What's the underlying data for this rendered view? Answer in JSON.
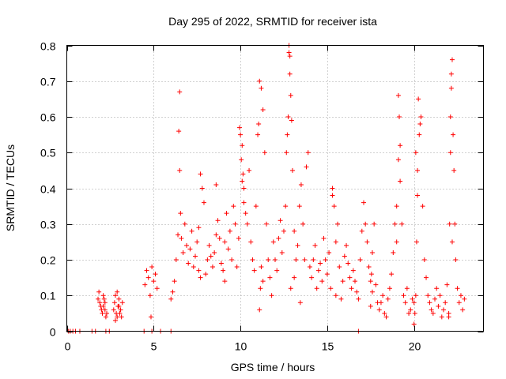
{
  "chart_data": {
    "type": "scatter",
    "title": "Day 295 of 2022, SRMTID for receiver ista",
    "xlabel": "GPS time / hours",
    "ylabel": "SRMTID / TECUs",
    "xlim": [
      0,
      24
    ],
    "ylim": [
      0,
      0.8
    ],
    "xticks": [
      0,
      5,
      10,
      15,
      20
    ],
    "xtick_labels": [
      "0",
      "5",
      "10",
      "15",
      "20"
    ],
    "yticks": [
      0,
      0.1,
      0.2,
      0.3,
      0.4,
      0.5,
      0.6,
      0.7,
      0.8
    ],
    "ytick_labels": [
      "0",
      "0.1",
      "0.2",
      "0.3",
      "0.4",
      "0.5",
      "0.6",
      "0.7",
      "0.8"
    ],
    "grid": true,
    "legend": "none",
    "series_color": "#ff0000",
    "marker": "plus",
    "series": [
      {
        "name": "SRMTID",
        "x": [
          0.1,
          0.2,
          0.35,
          0.5,
          0.75,
          1.45,
          1.65,
          2.25,
          2.45,
          4.45,
          4.9,
          5.4,
          6.0,
          16.8,
          1.8,
          1.85,
          1.9,
          1.95,
          2.0,
          2.05,
          2.1,
          2.15,
          2.2,
          2.25,
          2.3,
          2.2,
          2.1,
          2.7,
          2.75,
          2.8,
          2.85,
          2.9,
          2.95,
          3.0,
          3.05,
          3.1,
          3.15,
          3.2,
          2.8,
          2.9,
          3.0,
          4.5,
          4.6,
          4.7,
          4.8,
          4.85,
          5.0,
          5.1,
          5.2,
          4.9,
          6.0,
          6.1,
          6.2,
          6.3,
          6.4,
          6.5,
          6.45,
          6.5,
          6.55,
          6.6,
          6.7,
          6.8,
          6.9,
          7.0,
          7.1,
          7.2,
          7.3,
          7.4,
          7.5,
          7.6,
          7.7,
          7.8,
          7.9,
          7.6,
          7.7,
          8.0,
          8.1,
          8.2,
          8.3,
          8.4,
          8.5,
          8.6,
          8.7,
          8.8,
          8.9,
          9.0,
          9.1,
          9.2,
          9.3,
          9.4,
          9.5,
          9.6,
          9.7,
          9.8,
          9.9,
          9.1,
          8.6,
          9.95,
          10.0,
          10.05,
          10.1,
          10.15,
          10.2,
          10.3,
          10.4,
          10.5,
          10.6,
          10.7,
          10.8,
          10.9,
          11.0,
          11.1,
          11.2,
          11.3,
          11.4,
          11.5,
          11.6,
          11.7,
          11.8,
          11.9,
          10.1,
          10.2,
          11.05,
          11.1,
          11.15,
          11.2,
          11.3,
          12.0,
          12.1,
          12.2,
          12.3,
          12.4,
          12.5,
          12.6,
          12.65,
          12.7,
          12.75,
          12.8,
          12.85,
          12.9,
          12.95,
          13.0,
          13.1,
          13.2,
          13.3,
          13.4,
          13.5,
          13.6,
          13.7,
          13.8,
          13.9,
          12.8,
          12.85,
          12.9,
          13.45,
          13.1,
          14.0,
          14.1,
          14.2,
          14.3,
          14.4,
          14.5,
          14.6,
          14.7,
          14.8,
          14.9,
          15.0,
          15.1,
          15.2,
          15.3,
          15.4,
          15.5,
          15.6,
          15.7,
          15.8,
          15.9,
          16.0,
          16.1,
          16.2,
          16.3,
          16.4,
          15.3,
          15.5,
          16.5,
          16.6,
          16.7,
          16.8,
          16.9,
          17.0,
          17.1,
          17.2,
          17.3,
          17.4,
          17.5,
          17.6,
          17.7,
          17.8,
          17.9,
          17.5,
          17.55,
          17.6,
          18.0,
          18.1,
          18.2,
          18.3,
          18.4,
          18.5,
          18.6,
          18.7,
          18.8,
          18.9,
          19.0,
          19.1,
          19.2,
          19.3,
          19.4,
          19.5,
          19.6,
          19.7,
          19.8,
          19.9,
          19.1,
          19.15,
          19.2,
          19.0,
          20.0,
          20.05,
          20.1,
          20.15,
          20.2,
          20.25,
          20.3,
          20.35,
          20.4,
          20.5,
          20.6,
          20.7,
          20.8,
          20.9,
          21.0,
          21.1,
          21.2,
          21.3,
          21.4,
          21.5,
          21.6,
          21.7,
          21.8,
          21.9,
          20.0,
          20.1,
          20.2,
          22.0,
          22.05,
          22.1,
          22.15,
          22.2,
          22.25,
          22.3,
          22.35,
          22.4,
          22.5,
          22.6,
          22.7,
          22.8,
          22.9,
          22.0,
          22.1,
          22.15,
          22.2
        ],
        "y": [
          0,
          0,
          0,
          0,
          0,
          0,
          0,
          0,
          0,
          0,
          0,
          0,
          0,
          0,
          0.09,
          0.11,
          0.08,
          0.07,
          0.06,
          0.05,
          0.07,
          0.09,
          0.06,
          0.04,
          0.05,
          0.08,
          0.1,
          0.06,
          0.08,
          0.1,
          0.05,
          0.04,
          0.07,
          0.09,
          0.05,
          0.06,
          0.04,
          0.08,
          0.03,
          0.11,
          0.07,
          0.13,
          0.17,
          0.15,
          0.1,
          0.04,
          0.14,
          0.16,
          0.12,
          0.18,
          0.09,
          0.11,
          0.14,
          0.2,
          0.27,
          0.67,
          0.56,
          0.45,
          0.33,
          0.26,
          0.22,
          0.3,
          0.24,
          0.19,
          0.23,
          0.28,
          0.18,
          0.21,
          0.25,
          0.29,
          0.44,
          0.4,
          0.36,
          0.17,
          0.15,
          0.16,
          0.2,
          0.24,
          0.21,
          0.18,
          0.22,
          0.27,
          0.31,
          0.26,
          0.19,
          0.17,
          0.25,
          0.33,
          0.23,
          0.28,
          0.2,
          0.35,
          0.3,
          0.18,
          0.26,
          0.14,
          0.41,
          0.57,
          0.55,
          0.48,
          0.52,
          0.44,
          0.4,
          0.33,
          0.3,
          0.45,
          0.25,
          0.2,
          0.17,
          0.35,
          0.55,
          0.7,
          0.68,
          0.62,
          0.5,
          0.3,
          0.2,
          0.15,
          0.1,
          0.25,
          0.42,
          0.36,
          0.58,
          0.06,
          0.12,
          0.18,
          0.14,
          0.2,
          0.17,
          0.26,
          0.31,
          0.22,
          0.28,
          0.35,
          0.5,
          0.55,
          0.6,
          0.8,
          0.72,
          0.66,
          0.59,
          0.45,
          0.28,
          0.2,
          0.24,
          0.35,
          0.41,
          0.3,
          0.2,
          0.46,
          0.5,
          0.78,
          0.77,
          0.12,
          0.08,
          0.15,
          0.18,
          0.15,
          0.2,
          0.24,
          0.12,
          0.17,
          0.19,
          0.14,
          0.26,
          0.2,
          0.16,
          0.22,
          0.12,
          0.4,
          0.35,
          0.25,
          0.3,
          0.18,
          0.09,
          0.14,
          0.21,
          0.24,
          0.19,
          0.15,
          0.12,
          0.38,
          0.1,
          0.17,
          0.14,
          0.11,
          0.09,
          0.2,
          0.28,
          0.36,
          0.3,
          0.25,
          0.18,
          0.14,
          0.22,
          0.3,
          0.13,
          0.08,
          0.07,
          0.16,
          0.11,
          0.06,
          0.08,
          0.1,
          0.05,
          0.04,
          0.09,
          0.12,
          0.16,
          0.22,
          0.3,
          0.35,
          0.48,
          0.52,
          0.3,
          0.1,
          0.08,
          0.12,
          0.05,
          0.06,
          0.09,
          0.66,
          0.6,
          0.42,
          0.25,
          0.02,
          0.05,
          0.1,
          0.25,
          0.45,
          0.65,
          0.55,
          0.58,
          0.6,
          0.35,
          0.2,
          0.15,
          0.1,
          0.08,
          0.06,
          0.05,
          0.09,
          0.12,
          0.07,
          0.1,
          0.04,
          0.06,
          0.08,
          0.13,
          0.08,
          0.5,
          0.38,
          0.05,
          0.3,
          0.6,
          0.72,
          0.76,
          0.55,
          0.45,
          0.3,
          0.2,
          0.12,
          0.08,
          0.1,
          0.06,
          0.09,
          0.04,
          0.5,
          0.68,
          0.25
        ]
      }
    ]
  }
}
